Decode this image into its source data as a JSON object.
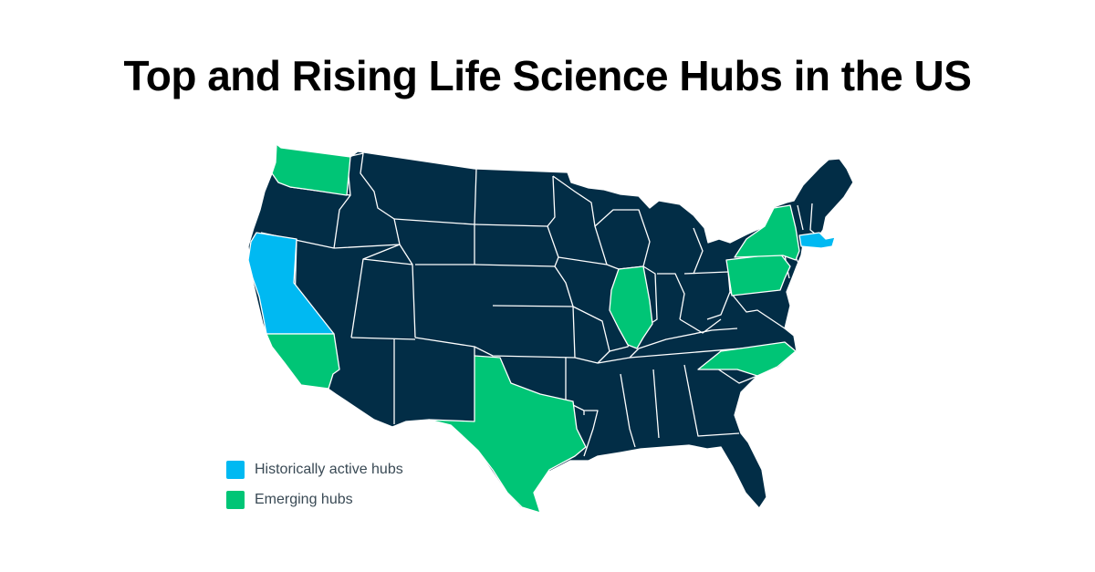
{
  "title": "Top and Rising Life Science Hubs in the US",
  "legend": [
    {
      "label": "Historically active hubs",
      "color": "#00b9f2"
    },
    {
      "label": "Emerging hubs",
      "color": "#00c576"
    }
  ],
  "colors": {
    "other_states": "#022d46",
    "borders": "#ffffff"
  },
  "hubs": {
    "historically_active": [
      "California (north)",
      "Massachusetts"
    ],
    "emerging": [
      "Washington",
      "California (south)",
      "Texas",
      "Illinois",
      "Pennsylvania",
      "New York",
      "North Carolina"
    ]
  }
}
